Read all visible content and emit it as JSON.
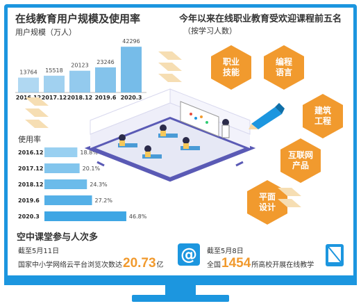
{
  "chart_data": [
    {
      "type": "bar",
      "title": "在线教育用户规模及使用率",
      "ylabel": "用户规模（万人）",
      "categories": [
        "2016.12",
        "2017.12",
        "2018.12",
        "2019.6",
        "2020.3"
      ],
      "values": [
        13764,
        15518,
        20123,
        23246,
        42296
      ],
      "value_labels": [
        "13764",
        "15518",
        "20123",
        "23246",
        "42296"
      ],
      "ylim": [
        0,
        45000
      ],
      "color": "#6fb8e8"
    },
    {
      "type": "bar",
      "orientation": "horizontal",
      "title": "使用率",
      "categories": [
        "2016.12",
        "2017.12",
        "2018.12",
        "2019.6",
        "2020.3"
      ],
      "values": [
        18.8,
        20.1,
        24.3,
        27.2,
        46.8
      ],
      "value_labels": [
        "18.8%",
        "20.1%",
        "24.3%",
        "27.2%",
        "46.8%"
      ],
      "xlim": [
        0,
        50
      ],
      "color": "#1c96df"
    }
  ],
  "courses": {
    "title": "今年以来在线职业教育受欢迎课程前五名",
    "subtitle": "（按学习人数）",
    "items": [
      "职业\n技能",
      "编程\n语言",
      "建筑\n工程",
      "互联网\n产品",
      "平面\n设计"
    ],
    "color": "#f19a2e"
  },
  "footer": {
    "title": "空中课堂参与人次多",
    "left_date": "截至5月11日",
    "left_prefix": "国家中小学网络云平台浏览次数达",
    "left_number": "20.73",
    "left_unit": "亿",
    "right_date": "截至5月8日",
    "right_prefix": "全国",
    "right_number": "1454",
    "right_suffix": "所高校开展在线教学"
  },
  "colors": {
    "frame": "#1c96df",
    "accent": "#f19a2e",
    "classroom": "#5a5ab5"
  }
}
